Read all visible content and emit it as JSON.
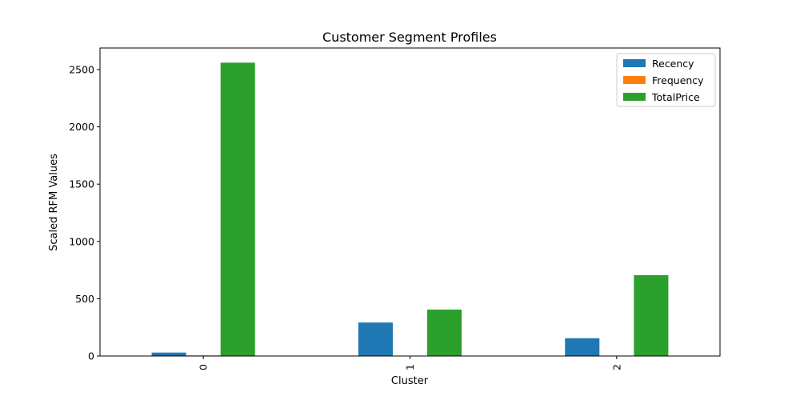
{
  "chart_data": {
    "type": "bar",
    "title": "Customer Segment Profiles",
    "xlabel": "Cluster",
    "ylabel": "Scaled RFM Values",
    "categories": [
      "0",
      "1",
      "2"
    ],
    "series": [
      {
        "name": "Recency",
        "values": [
          30,
          292,
          155
        ],
        "color": "#1f77b4"
      },
      {
        "name": "Frequency",
        "values": [
          5,
          1,
          1
        ],
        "color": "#ff7f0e"
      },
      {
        "name": "TotalPrice",
        "values": [
          2560,
          405,
          705
        ],
        "color": "#2ca02c"
      }
    ],
    "ylim": [
      0,
      2688
    ],
    "yticks": [
      0,
      500,
      1000,
      1500,
      2000,
      2500
    ],
    "grid": false,
    "legend_position": "top-right"
  }
}
